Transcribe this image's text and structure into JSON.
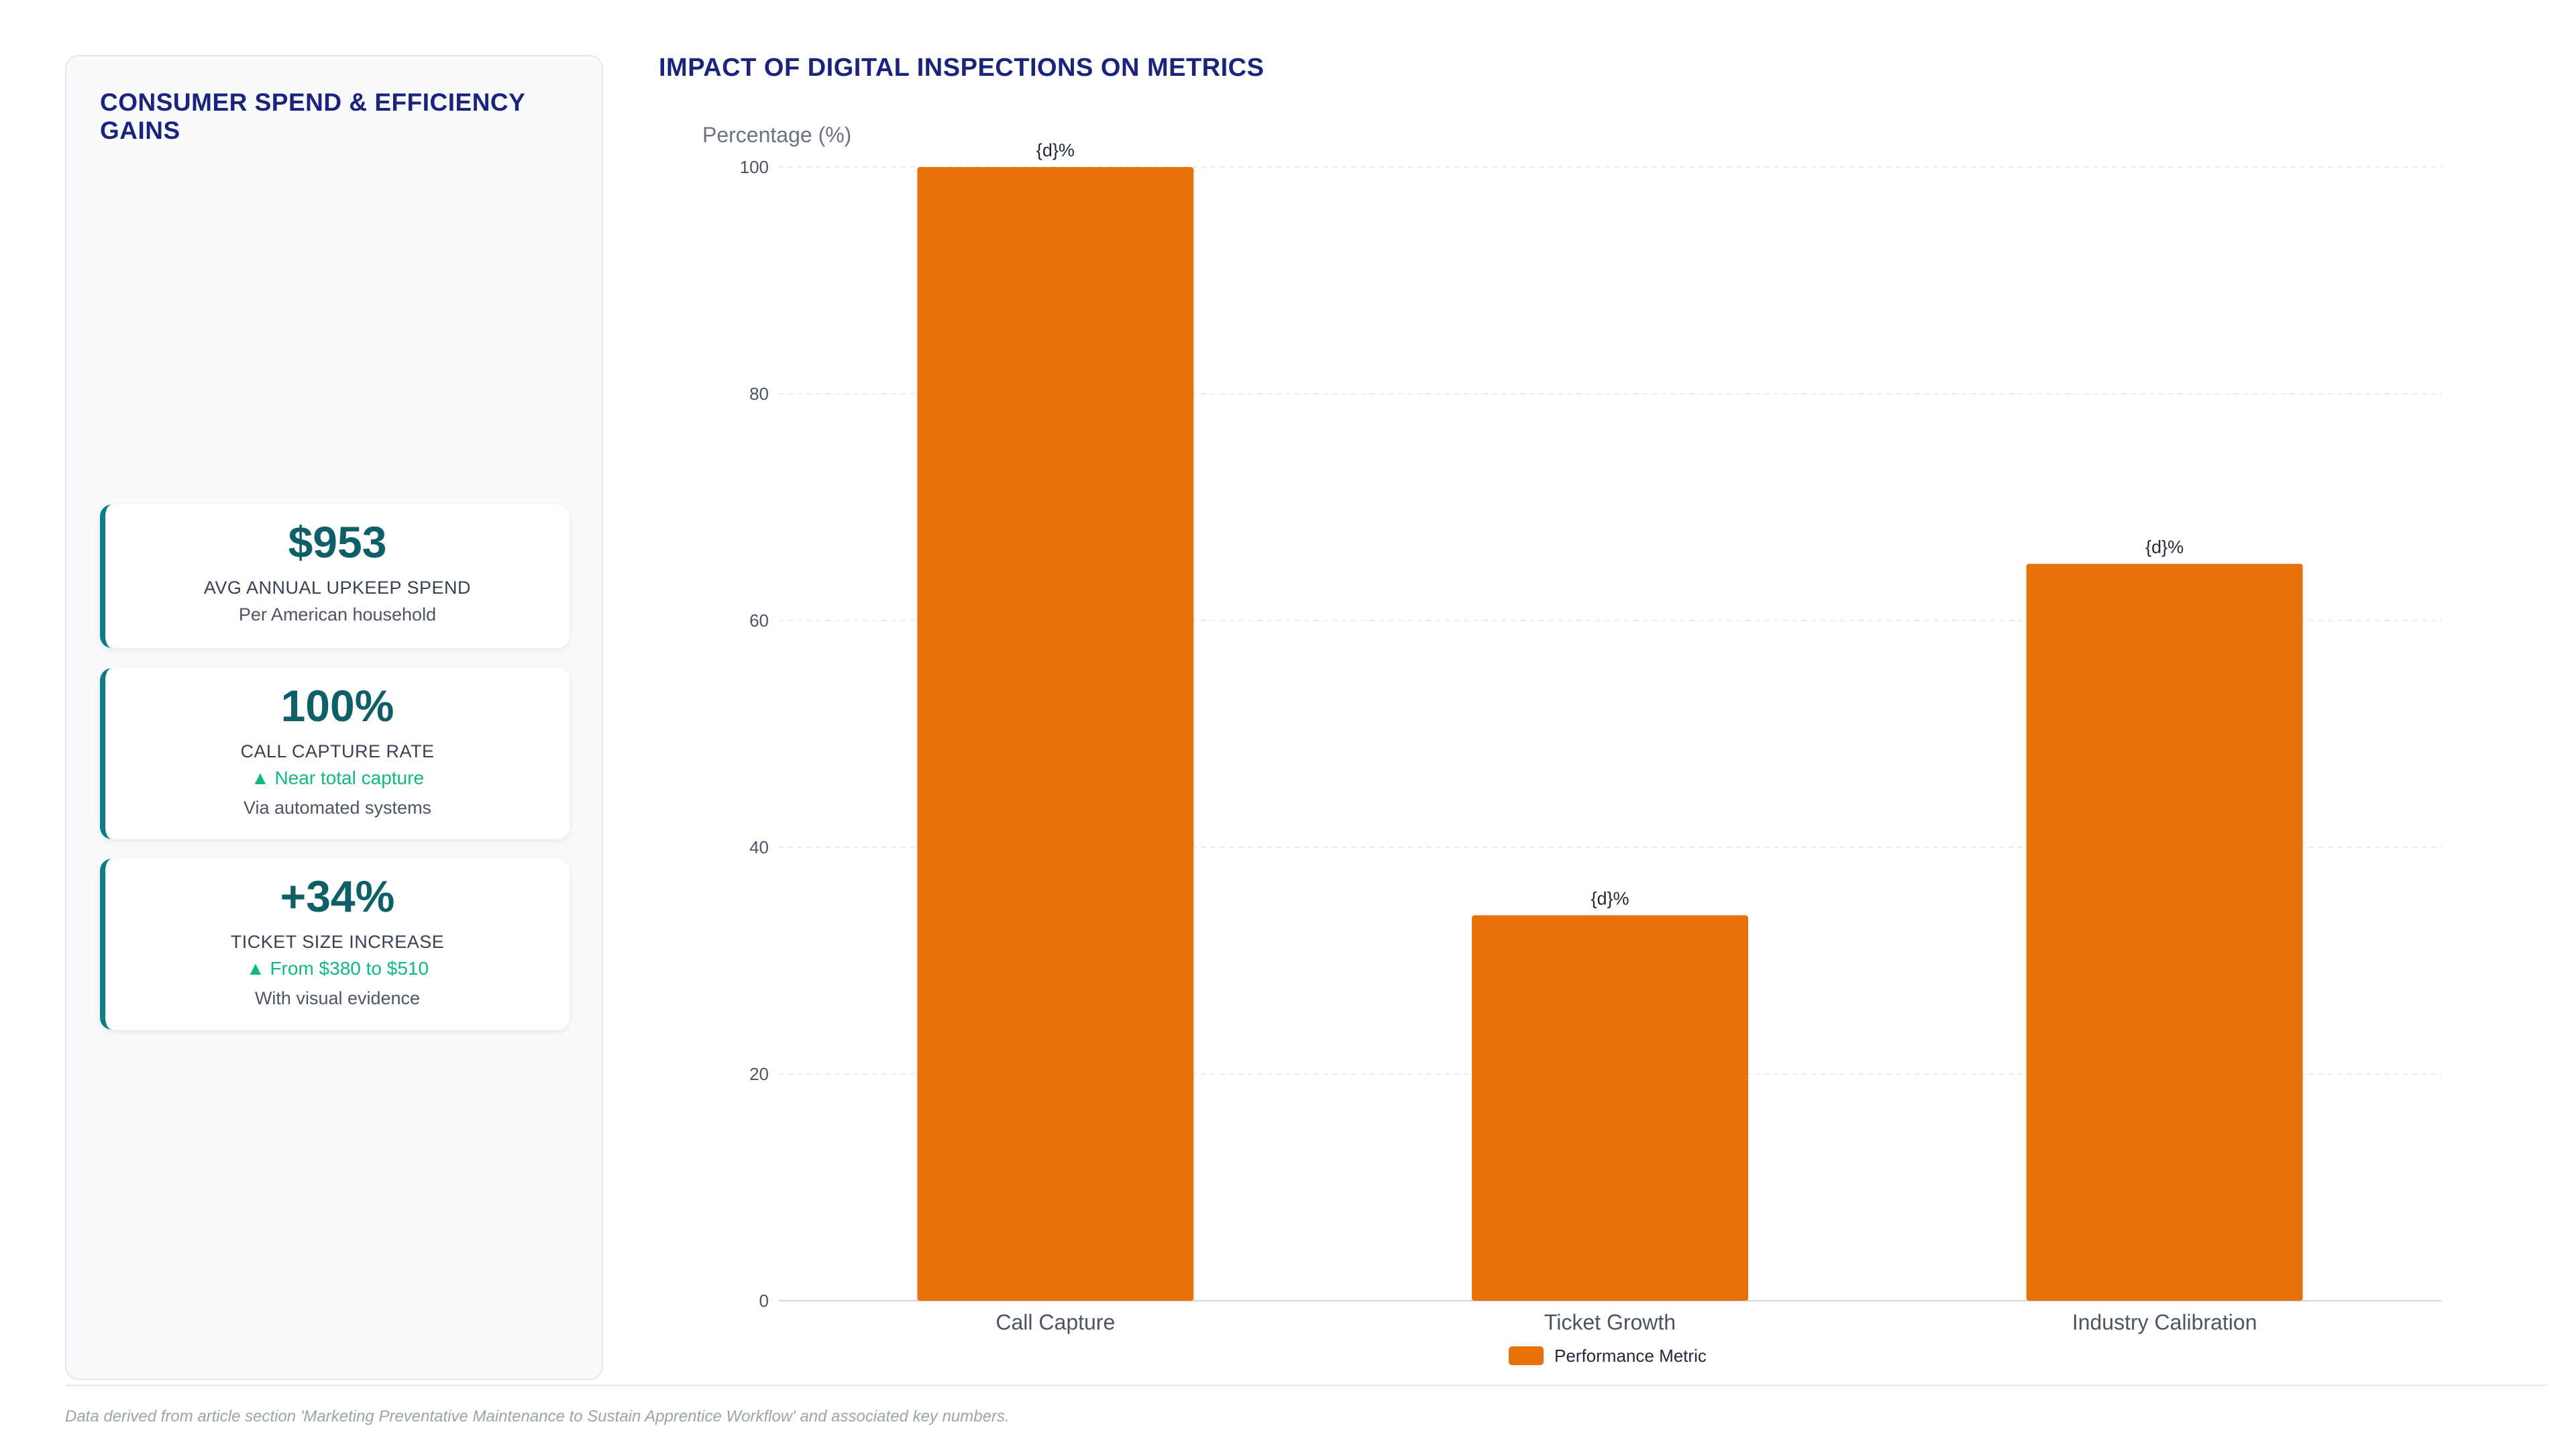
{
  "side_panel": {
    "title": "CONSUMER SPEND & EFFICIENCY GAINS",
    "cards": [
      {
        "value": "$953",
        "label": "AVG ANNUAL UPKEEP SPEND",
        "trend": "",
        "sub": "Per American household"
      },
      {
        "value": "100%",
        "label": "CALL CAPTURE RATE",
        "trend": "▲ Near total capture",
        "sub": "Via automated systems"
      },
      {
        "value": "+34%",
        "label": "TICKET SIZE INCREASE",
        "trend": "▲ From $380 to $510",
        "sub": "With visual evidence"
      }
    ]
  },
  "chart_title": "IMPACT OF DIGITAL INSPECTIONS ON METRICS",
  "chart_data": {
    "type": "bar",
    "title": "IMPACT OF DIGITAL INSPECTIONS ON METRICS",
    "ylabel": "Percentage (%)",
    "xlabel": "",
    "categories": [
      "Call Capture",
      "Ticket Growth",
      "Industry Calibration"
    ],
    "series": [
      {
        "name": "Performance Metric",
        "values": [
          100,
          34,
          65
        ],
        "color": "#e8710a"
      }
    ],
    "data_labels": [
      "{d}%",
      "{d}%",
      "{d}%"
    ],
    "ylim": [
      0,
      100
    ],
    "yticks": [
      0,
      20,
      40,
      60,
      80,
      100
    ],
    "grid": true,
    "legend_position": "bottom"
  },
  "footnote": "Data derived from article section 'Marketing Preventative Maintenance to Sustain Apprentice Workflow' and associated key numbers."
}
